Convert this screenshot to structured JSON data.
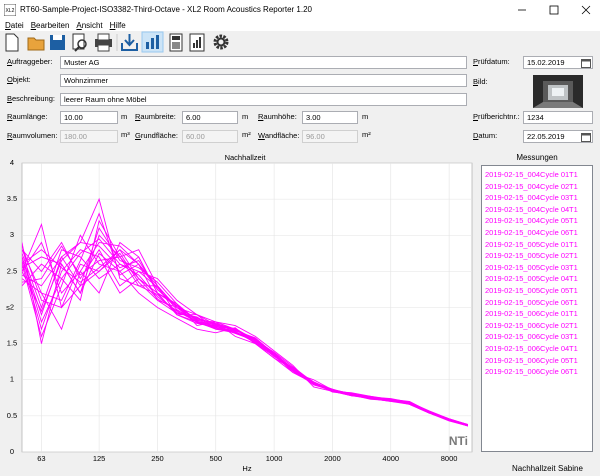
{
  "window": {
    "title": "RT60-Sample-Project-ISO3382-Third-Octave - XL2 Room Acoustics Reporter 1.20",
    "menu": [
      "Datei",
      "Bearbeiten",
      "Ansicht",
      "Hilfe"
    ]
  },
  "form": {
    "client": {
      "label": "Auftraggeber:",
      "value": "Muster AG"
    },
    "object": {
      "label": "Objekt:",
      "value": "Wohnzimmer"
    },
    "description": {
      "label": "Beschreibung:",
      "value": "leerer Raum ohne Möbel"
    },
    "test_date": {
      "label": "Prüfdatum:",
      "value": "15.02.2019"
    },
    "picture": {
      "label": "Bild:"
    },
    "room_length": {
      "label": "Raumlänge:",
      "value": "10.00",
      "unit": "m"
    },
    "room_width": {
      "label": "Raumbreite:",
      "value": "6.00",
      "unit": "m"
    },
    "room_height": {
      "label": "Raumhöhe:",
      "value": "3.00",
      "unit": "m"
    },
    "report_no": {
      "label": "Prüfberichtnr.:",
      "value": "1234"
    },
    "room_volume": {
      "label": "Raumvolumen:",
      "value": "180.00",
      "unit": "m³"
    },
    "floor_area": {
      "label": "Grundfläche:",
      "value": "60.00",
      "unit": "m²"
    },
    "wall_area": {
      "label": "Wandfläche:",
      "value": "96.00",
      "unit": "m²"
    },
    "date": {
      "label": "Datum:",
      "value": "22.05.2019"
    }
  },
  "measurements_title": "Messungen",
  "status": [
    "Nachhallzeit",
    "Sabine"
  ],
  "chart_data": {
    "type": "line",
    "title": "Nachhallzeit",
    "x_label": "Hz",
    "y_label": "s",
    "watermark": "NTi",
    "x_scale": "log",
    "grid": true,
    "color": "#ff00ff",
    "xlim": [
      50,
      10500
    ],
    "xticks": [
      63,
      125,
      250,
      500,
      1000,
      2000,
      4000,
      8000
    ],
    "ylim": [
      0,
      4
    ],
    "yticks": [
      0,
      0.5,
      1,
      1.5,
      2,
      2.5,
      3,
      3.5,
      4
    ],
    "x": [
      50,
      63,
      80,
      100,
      125,
      160,
      200,
      250,
      315,
      400,
      500,
      630,
      800,
      1000,
      1250,
      1600,
      2000,
      2500,
      3150,
      4000,
      5000,
      6300,
      8000,
      10000
    ],
    "series": [
      {
        "name": "2019-02-15_004Cycle 01",
        "param": "T1",
        "values": [
          2.9,
          1.5,
          2.6,
          2.2,
          3.0,
          2.7,
          2.4,
          2.2,
          1.9,
          1.8,
          1.75,
          1.7,
          1.5,
          1.3,
          1.15,
          0.95,
          0.85,
          0.8,
          0.75,
          0.72,
          0.68,
          0.55,
          0.45,
          0.37
        ]
      },
      {
        "name": "2019-02-15_004Cycle 02",
        "param": "T1",
        "values": [
          2.5,
          3.15,
          2.0,
          2.3,
          2.5,
          2.8,
          2.6,
          2.1,
          2.0,
          1.8,
          1.7,
          1.65,
          1.55,
          1.35,
          1.1,
          0.95,
          0.87,
          0.78,
          0.74,
          0.7,
          0.66,
          0.54,
          0.44,
          0.36
        ]
      },
      {
        "name": "2019-02-15_004Cycle 03",
        "param": "T1",
        "values": [
          2.7,
          1.9,
          2.7,
          2.9,
          3.5,
          2.4,
          2.3,
          2.3,
          1.9,
          1.9,
          1.8,
          1.75,
          1.6,
          1.4,
          1.2,
          0.9,
          0.84,
          0.82,
          0.77,
          0.73,
          0.7,
          0.56,
          0.46,
          0.38
        ]
      },
      {
        "name": "2019-02-15_004Cycle 04",
        "param": "T1",
        "values": [
          2.4,
          2.2,
          1.7,
          2.5,
          2.2,
          2.9,
          2.7,
          2.2,
          2.05,
          1.75,
          1.8,
          1.6,
          1.5,
          1.3,
          1.1,
          1.0,
          0.86,
          0.79,
          0.73,
          0.71,
          0.67,
          0.55,
          0.45,
          0.37
        ]
      },
      {
        "name": "2019-02-15_004Cycle 05",
        "param": "T1",
        "values": [
          2.8,
          2.5,
          2.9,
          2.4,
          2.8,
          2.3,
          2.5,
          2.4,
          2.1,
          1.9,
          1.7,
          1.7,
          1.55,
          1.38,
          1.18,
          0.96,
          0.83,
          0.8,
          0.76,
          0.74,
          0.69,
          0.57,
          0.46,
          0.38
        ]
      },
      {
        "name": "2019-02-15_004Cycle 06",
        "param": "T1",
        "values": [
          2.6,
          1.6,
          2.3,
          3.0,
          2.6,
          2.5,
          2.2,
          2.0,
          1.85,
          1.7,
          1.65,
          1.72,
          1.5,
          1.33,
          1.12,
          0.94,
          0.85,
          0.81,
          0.75,
          0.72,
          0.66,
          0.54,
          0.43,
          0.36
        ]
      },
      {
        "name": "2019-02-15_005Cycle 01",
        "param": "T1",
        "values": [
          2.3,
          2.6,
          2.4,
          2.1,
          3.2,
          2.7,
          2.8,
          2.3,
          2.0,
          1.85,
          1.78,
          1.68,
          1.58,
          1.36,
          1.16,
          0.97,
          0.86,
          0.8,
          0.74,
          0.71,
          0.68,
          0.55,
          0.45,
          0.37
        ]
      },
      {
        "name": "2019-02-15_005Cycle 02",
        "param": "T1",
        "values": [
          2.75,
          2.0,
          2.8,
          2.7,
          2.4,
          2.6,
          2.45,
          2.15,
          1.95,
          1.8,
          1.72,
          1.66,
          1.52,
          1.34,
          1.14,
          0.95,
          0.84,
          0.78,
          0.75,
          0.72,
          0.67,
          0.56,
          0.44,
          0.37
        ]
      },
      {
        "name": "2019-02-15_005Cycle 03",
        "param": "T1",
        "values": [
          2.5,
          2.9,
          2.2,
          2.5,
          2.9,
          2.85,
          2.6,
          2.25,
          2.0,
          1.9,
          1.76,
          1.7,
          1.56,
          1.37,
          1.15,
          0.93,
          0.85,
          0.8,
          0.76,
          0.73,
          0.69,
          0.55,
          0.45,
          0.38
        ]
      },
      {
        "name": "2019-02-15_005Cycle 04",
        "param": "T1",
        "values": [
          2.65,
          1.7,
          2.5,
          2.8,
          2.7,
          2.2,
          2.4,
          2.2,
          1.9,
          1.78,
          1.74,
          1.64,
          1.54,
          1.35,
          1.13,
          0.96,
          0.86,
          0.81,
          0.74,
          0.71,
          0.66,
          0.54,
          0.44,
          0.36
        ]
      },
      {
        "name": "2019-02-15_005Cycle 05",
        "param": "T1",
        "values": [
          2.45,
          2.3,
          2.7,
          2.3,
          3.1,
          2.65,
          2.55,
          2.35,
          2.05,
          1.82,
          1.8,
          1.7,
          1.53,
          1.32,
          1.17,
          0.95,
          0.84,
          0.79,
          0.75,
          0.73,
          0.68,
          0.56,
          0.46,
          0.37
        ]
      },
      {
        "name": "2019-02-15_005Cycle 06",
        "param": "T1",
        "values": [
          2.85,
          2.1,
          2.0,
          2.6,
          2.5,
          2.75,
          2.35,
          2.1,
          1.92,
          1.87,
          1.7,
          1.68,
          1.57,
          1.36,
          1.12,
          0.94,
          0.85,
          0.8,
          0.77,
          0.72,
          0.67,
          0.55,
          0.45,
          0.38
        ]
      },
      {
        "name": "2019-02-15_006Cycle 01",
        "param": "T1",
        "values": [
          2.55,
          2.7,
          2.6,
          2.2,
          2.75,
          2.5,
          2.7,
          2.2,
          2.02,
          1.83,
          1.73,
          1.71,
          1.55,
          1.33,
          1.14,
          0.96,
          0.87,
          0.8,
          0.74,
          0.7,
          0.68,
          0.54,
          0.44,
          0.36
        ]
      },
      {
        "name": "2019-02-15_006Cycle 02",
        "param": "T1",
        "values": [
          2.7,
          1.8,
          2.4,
          2.75,
          2.95,
          2.6,
          2.5,
          2.28,
          1.97,
          1.8,
          1.77,
          1.67,
          1.51,
          1.35,
          1.16,
          0.95,
          0.84,
          0.78,
          0.76,
          0.73,
          0.69,
          0.56,
          0.45,
          0.37
        ]
      },
      {
        "name": "2019-02-15_006Cycle 03",
        "param": "T1",
        "values": [
          2.35,
          2.4,
          2.85,
          2.45,
          2.65,
          2.7,
          2.3,
          2.18,
          1.93,
          1.86,
          1.75,
          1.69,
          1.56,
          1.37,
          1.13,
          0.93,
          0.86,
          0.81,
          0.75,
          0.71,
          0.67,
          0.55,
          0.44,
          0.37
        ]
      },
      {
        "name": "2019-02-15_006Cycle 04",
        "param": "T1",
        "values": [
          2.8,
          2.2,
          2.1,
          2.65,
          3.3,
          2.45,
          2.6,
          2.3,
          2.0,
          1.79,
          1.71,
          1.65,
          1.54,
          1.34,
          1.15,
          0.97,
          0.85,
          0.79,
          0.74,
          0.72,
          0.68,
          0.55,
          0.45,
          0.38
        ]
      },
      {
        "name": "2019-02-15_006Cycle 05",
        "param": "T1",
        "values": [
          2.6,
          2.8,
          2.55,
          2.35,
          2.55,
          2.8,
          2.4,
          2.12,
          1.96,
          1.84,
          1.78,
          1.7,
          1.53,
          1.36,
          1.14,
          0.94,
          0.84,
          0.8,
          0.76,
          0.73,
          0.66,
          0.54,
          0.44,
          0.36
        ]
      },
      {
        "name": "2019-02-15_006Cycle 06",
        "param": "T1",
        "values": [
          2.5,
          1.95,
          2.65,
          2.9,
          2.85,
          2.55,
          2.65,
          2.25,
          2.03,
          1.81,
          1.74,
          1.66,
          1.55,
          1.33,
          1.16,
          0.95,
          0.86,
          0.8,
          0.75,
          0.71,
          0.68,
          0.56,
          0.45,
          0.37
        ]
      }
    ]
  }
}
